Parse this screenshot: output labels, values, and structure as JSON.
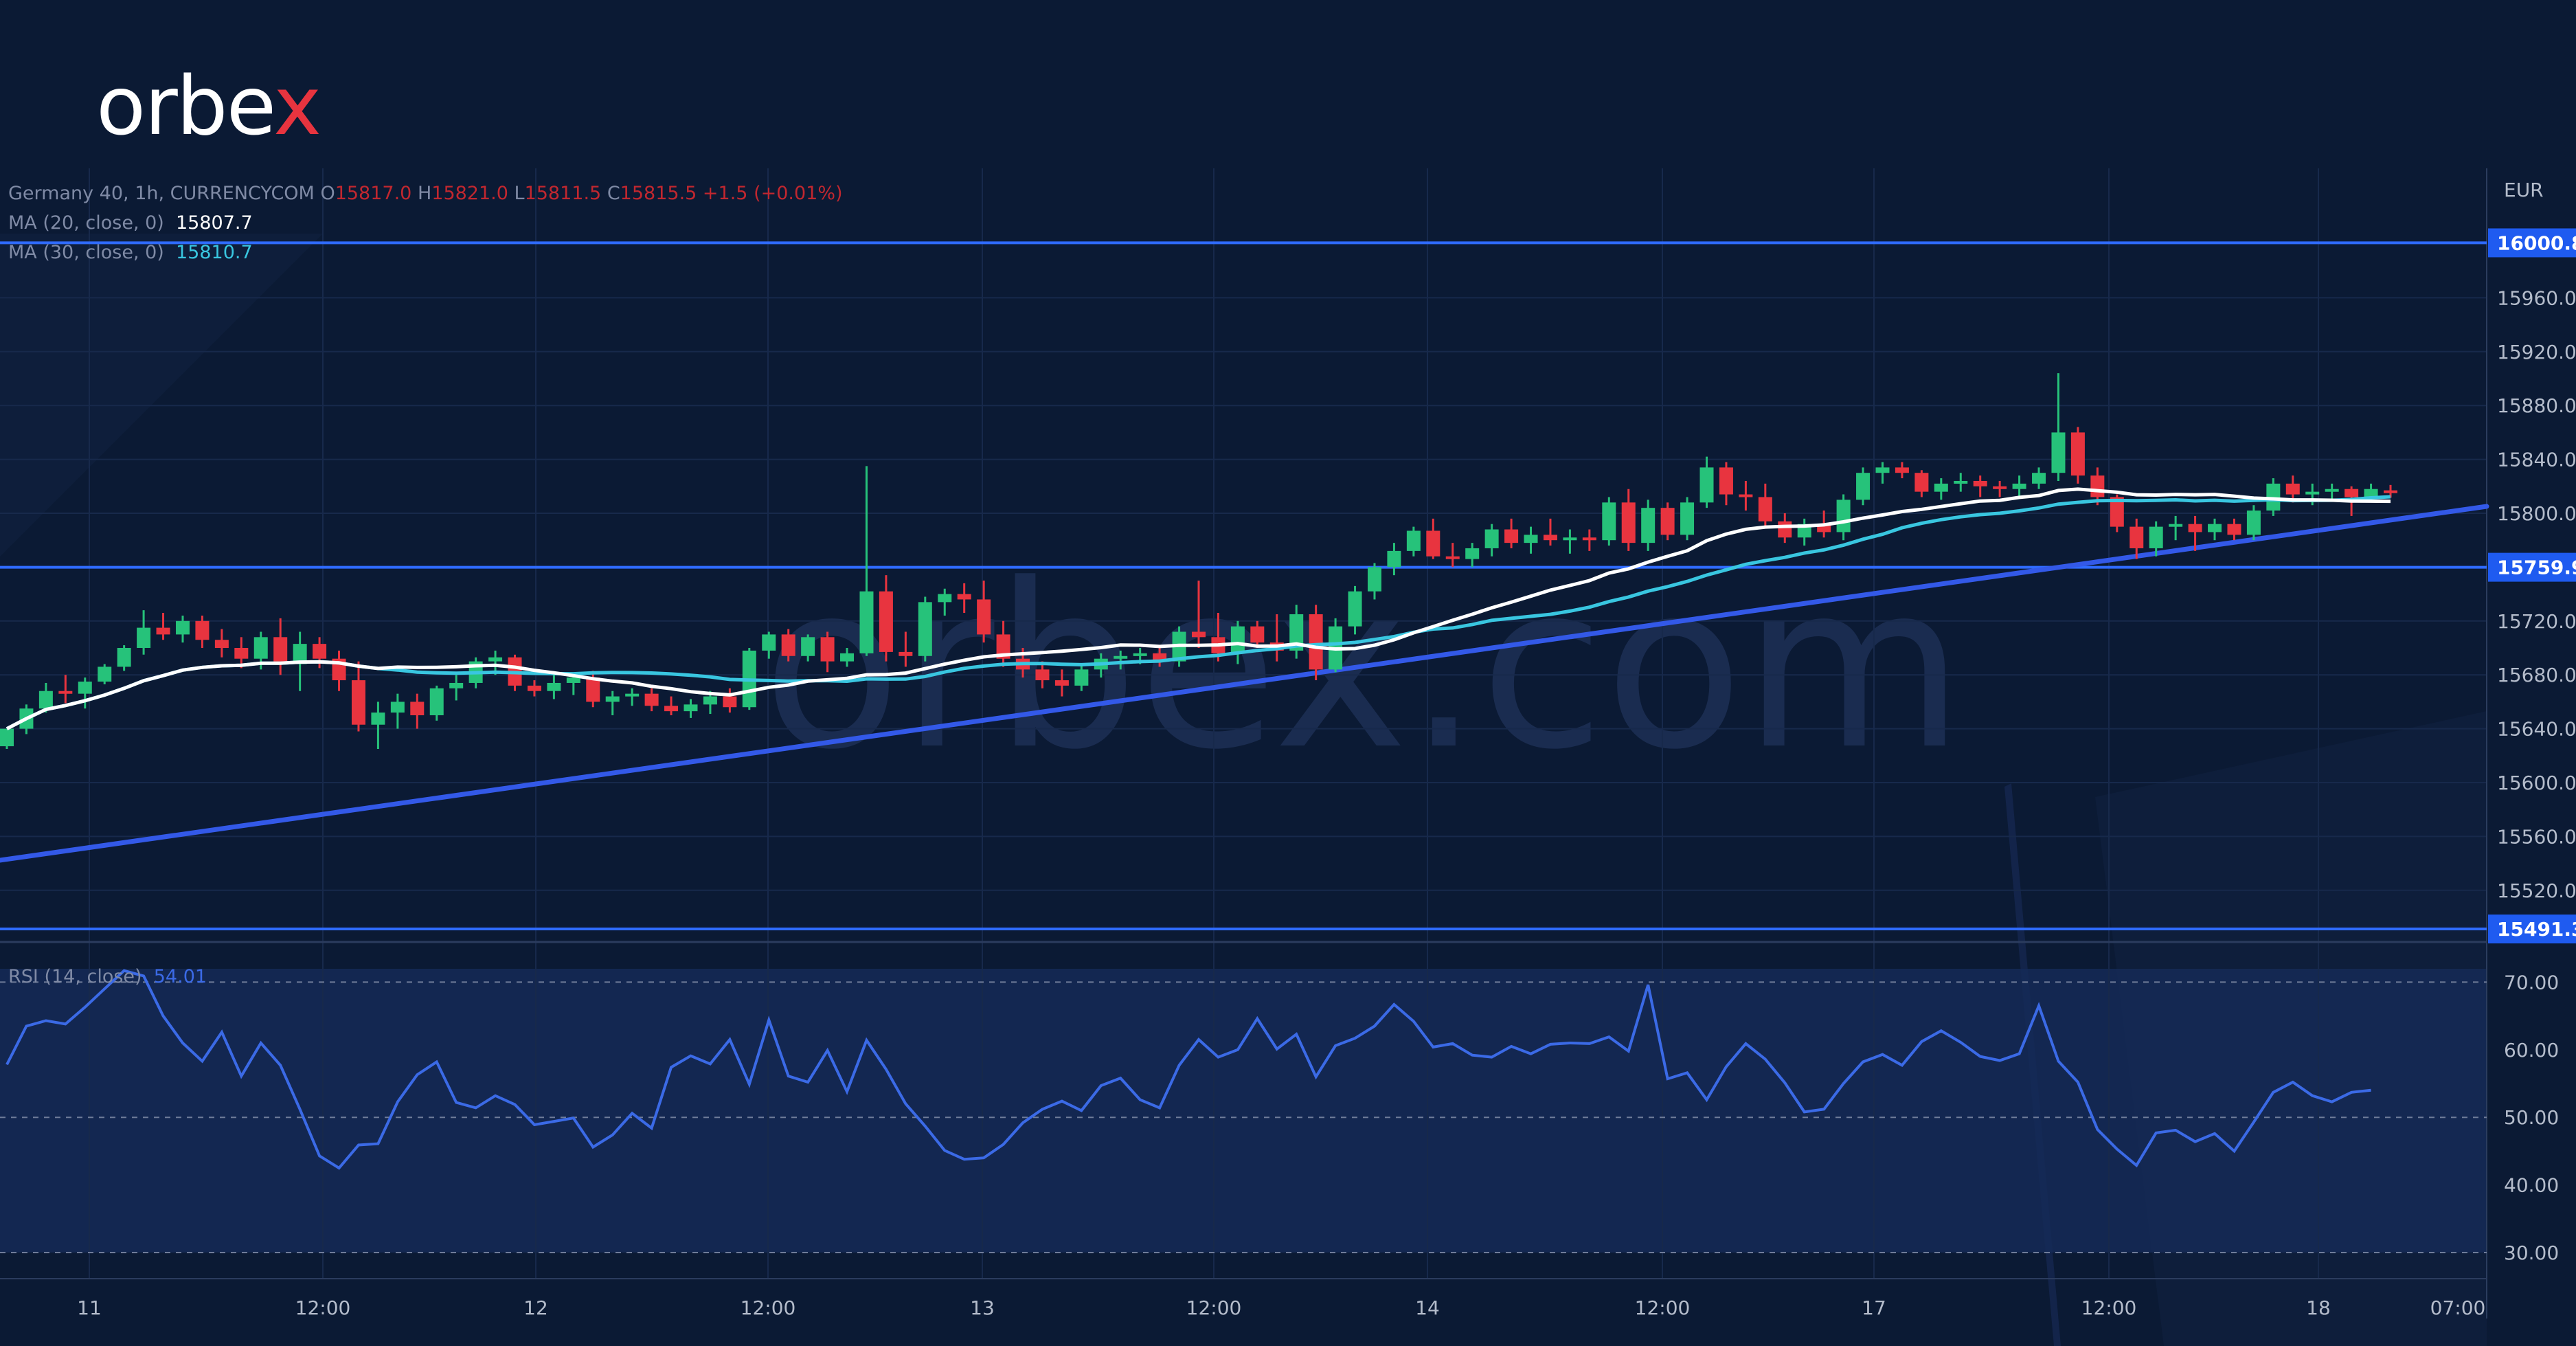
{
  "brand": {
    "logo_main": "orbe",
    "logo_x": "x",
    "watermark": "orbex.com"
  },
  "header": {
    "symbol": "Germany 40, 1h, CURRENCYCOM",
    "ohlc": {
      "o_label": "O",
      "o": "15817.0",
      "h_label": "H",
      "h": "15821.0",
      "l_label": "L",
      "l": "15811.5",
      "c_label": "C",
      "c": "15815.5",
      "change": "+1.5 (+0.01%)"
    },
    "ma20": {
      "label": "MA (20, close, 0)",
      "value": "15807.7"
    },
    "ma30": {
      "label": "MA (30, close, 0)",
      "value": "15810.7"
    },
    "rsi": {
      "label": "RSI (14, close)",
      "value": "54.01"
    }
  },
  "colors": {
    "background": "#0b1a34",
    "grid": "#17294b",
    "bull": "#26c27a",
    "bear": "#e8343f",
    "ma20": "#ffffff",
    "ma30": "#39c6e0",
    "level": "#2f6bff",
    "trend": "#3359e8",
    "rsi_line": "#3b6ae6",
    "rsi_band": "#152a57",
    "axis_text": "#b4bccb",
    "label_bg": "#1f5bf0"
  },
  "chart_data": [
    {
      "type": "candlestick",
      "symbol": "Germany 40",
      "interval": "1h",
      "currency": "EUR",
      "x_tick_labels": [
        "11",
        "12:00",
        "12",
        "12:00",
        "13",
        "12:00",
        "14",
        "12:00",
        "17",
        "12:00",
        "18",
        "07:00"
      ],
      "y_tick_labels": [
        "15960.0",
        "15920.0",
        "15880.0",
        "15840.0",
        "15800.0",
        "15720.0",
        "15680.0",
        "15640.0",
        "15600.0",
        "15560.0",
        "15520.0"
      ],
      "ylim": [
        15480,
        16040
      ],
      "grid": true,
      "horizontal_levels": [
        16000.8,
        15759.9,
        15491.3
      ],
      "trendline": {
        "from": [
          0,
          15546
        ],
        "to": [
          114,
          15800
        ]
      },
      "candles_ohlc": [
        [
          15627,
          15640,
          15625,
          15640
        ],
        [
          15640,
          15658,
          15636,
          15655
        ],
        [
          15655,
          15674,
          15652,
          15668
        ],
        [
          15668,
          15680,
          15659,
          15666
        ],
        [
          15666,
          15678,
          15655,
          15675
        ],
        [
          15675,
          15688,
          15673,
          15686
        ],
        [
          15686,
          15702,
          15683,
          15700
        ],
        [
          15700,
          15728,
          15695,
          15715
        ],
        [
          15715,
          15726,
          15706,
          15710
        ],
        [
          15710,
          15724,
          15704,
          15720
        ],
        [
          15720,
          15724,
          15700,
          15706
        ],
        [
          15706,
          15714,
          15693,
          15700
        ],
        [
          15700,
          15708,
          15685,
          15692
        ],
        [
          15692,
          15712,
          15684,
          15708
        ],
        [
          15708,
          15722,
          15680,
          15688
        ],
        [
          15688,
          15712,
          15668,
          15703
        ],
        [
          15703,
          15708,
          15685,
          15692
        ],
        [
          15692,
          15698,
          15668,
          15676
        ],
        [
          15676,
          15690,
          15638,
          15643
        ],
        [
          15643,
          15660,
          15625,
          15652
        ],
        [
          15652,
          15666,
          15640,
          15660
        ],
        [
          15660,
          15666,
          15640,
          15650
        ],
        [
          15650,
          15672,
          15646,
          15670
        ],
        [
          15670,
          15680,
          15661,
          15674
        ],
        [
          15674,
          15693,
          15670,
          15690
        ],
        [
          15690,
          15698,
          15680,
          15693
        ],
        [
          15693,
          15695,
          15668,
          15672
        ],
        [
          15672,
          15676,
          15664,
          15668
        ],
        [
          15668,
          15680,
          15662,
          15674
        ],
        [
          15674,
          15680,
          15665,
          15678
        ],
        [
          15678,
          15683,
          15656,
          15660
        ],
        [
          15660,
          15668,
          15650,
          15664
        ],
        [
          15664,
          15670,
          15657,
          15666
        ],
        [
          15666,
          15670,
          15653,
          15657
        ],
        [
          15657,
          15664,
          15650,
          15653
        ],
        [
          15653,
          15662,
          15648,
          15658
        ],
        [
          15658,
          15668,
          15651,
          15664
        ],
        [
          15664,
          15670,
          15652,
          15656
        ],
        [
          15656,
          15700,
          15654,
          15698
        ],
        [
          15698,
          15712,
          15692,
          15710
        ],
        [
          15710,
          15714,
          15690,
          15694
        ],
        [
          15694,
          15710,
          15690,
          15708
        ],
        [
          15708,
          15712,
          15682,
          15690
        ],
        [
          15690,
          15700,
          15686,
          15696
        ],
        [
          15696,
          15835,
          15694,
          15742
        ],
        [
          15742,
          15754,
          15690,
          15697
        ],
        [
          15697,
          15712,
          15686,
          15694
        ],
        [
          15694,
          15738,
          15690,
          15734
        ],
        [
          15734,
          15744,
          15724,
          15740
        ],
        [
          15740,
          15748,
          15726,
          15736
        ],
        [
          15736,
          15750,
          15704,
          15710
        ],
        [
          15710,
          15720,
          15686,
          15692
        ],
        [
          15692,
          15700,
          15678,
          15684
        ],
        [
          15684,
          15690,
          15670,
          15676
        ],
        [
          15676,
          15684,
          15664,
          15672
        ],
        [
          15672,
          15688,
          15668,
          15684
        ],
        [
          15684,
          15696,
          15678,
          15692
        ],
        [
          15692,
          15698,
          15684,
          15694
        ],
        [
          15694,
          15700,
          15688,
          15696
        ],
        [
          15696,
          15700,
          15686,
          15690
        ],
        [
          15690,
          15716,
          15686,
          15712
        ],
        [
          15712,
          15750,
          15700,
          15708
        ],
        [
          15708,
          15726,
          15690,
          15696
        ],
        [
          15696,
          15720,
          15688,
          15716
        ],
        [
          15716,
          15720,
          15700,
          15704
        ],
        [
          15704,
          15725,
          15690,
          15698
        ],
        [
          15698,
          15732,
          15692,
          15725
        ],
        [
          15725,
          15732,
          15676,
          15684
        ],
        [
          15684,
          15722,
          15682,
          15716
        ],
        [
          15716,
          15746,
          15710,
          15742
        ],
        [
          15742,
          15763,
          15736,
          15760
        ],
        [
          15760,
          15778,
          15754,
          15772
        ],
        [
          15772,
          15790,
          15768,
          15787
        ],
        [
          15787,
          15796,
          15766,
          15768
        ],
        [
          15768,
          15778,
          15760,
          15766
        ],
        [
          15766,
          15778,
          15760,
          15774
        ],
        [
          15774,
          15792,
          15768,
          15788
        ],
        [
          15788,
          15796,
          15774,
          15778
        ],
        [
          15778,
          15790,
          15770,
          15784
        ],
        [
          15784,
          15796,
          15776,
          15780
        ],
        [
          15780,
          15788,
          15770,
          15782
        ],
        [
          15782,
          15788,
          15772,
          15780
        ],
        [
          15780,
          15812,
          15776,
          15808
        ],
        [
          15808,
          15818,
          15772,
          15778
        ],
        [
          15778,
          15810,
          15772,
          15804
        ],
        [
          15804,
          15808,
          15780,
          15784
        ],
        [
          15784,
          15812,
          15780,
          15808
        ],
        [
          15808,
          15842,
          15804,
          15834
        ],
        [
          15834,
          15838,
          15806,
          15814
        ],
        [
          15814,
          15824,
          15802,
          15812
        ],
        [
          15812,
          15822,
          15790,
          15794
        ],
        [
          15794,
          15800,
          15778,
          15782
        ],
        [
          15782,
          15796,
          15776,
          15792
        ],
        [
          15792,
          15802,
          15782,
          15786
        ],
        [
          15786,
          15814,
          15780,
          15810
        ],
        [
          15810,
          15834,
          15806,
          15830
        ],
        [
          15830,
          15838,
          15822,
          15834
        ],
        [
          15834,
          15838,
          15826,
          15830
        ],
        [
          15830,
          15832,
          15812,
          15816
        ],
        [
          15816,
          15826,
          15810,
          15822
        ],
        [
          15822,
          15830,
          15816,
          15824
        ],
        [
          15824,
          15828,
          15812,
          15820
        ],
        [
          15820,
          15824,
          15812,
          15818
        ],
        [
          15818,
          15828,
          15812,
          15822
        ],
        [
          15822,
          15834,
          15818,
          15830
        ],
        [
          15830,
          15904,
          15824,
          15860
        ],
        [
          15860,
          15864,
          15822,
          15828
        ],
        [
          15828,
          15834,
          15806,
          15812
        ],
        [
          15812,
          15814,
          15786,
          15790
        ],
        [
          15790,
          15796,
          15766,
          15774
        ],
        [
          15774,
          15794,
          15768,
          15790
        ],
        [
          15790,
          15798,
          15780,
          15792
        ],
        [
          15792,
          15798,
          15772,
          15786
        ],
        [
          15786,
          15796,
          15780,
          15792
        ],
        [
          15792,
          15796,
          15780,
          15784
        ],
        [
          15784,
          15806,
          15780,
          15802
        ],
        [
          15802,
          15826,
          15798,
          15822
        ],
        [
          15822,
          15828,
          15808,
          15814
        ],
        [
          15814,
          15822,
          15806,
          15816
        ],
        [
          15816,
          15822,
          15810,
          15818
        ],
        [
          15818,
          15820,
          15798,
          15812
        ],
        [
          15812,
          15822,
          15808,
          15818
        ],
        [
          15817,
          15821,
          15811.5,
          15815.5
        ]
      ]
    },
    {
      "type": "line",
      "title": "RSI (14, close)",
      "series": [
        {
          "name": "RSI (14, close)",
          "values": [
            57.8,
            63.5,
            64.3,
            63.8,
            66.3,
            69.0,
            71.7,
            70.9,
            65.0,
            61.0,
            58.3,
            62.6,
            56.1,
            61.0,
            57.7,
            51.2,
            44.3,
            42.5,
            45.9,
            46.1,
            52.3,
            56.3,
            58.2,
            52.2,
            51.4,
            53.2,
            51.9,
            48.9,
            49.4,
            49.9,
            45.6,
            47.4,
            50.6,
            48.4,
            57.4,
            59.1,
            57.9,
            61.5,
            54.9,
            64.4,
            56.1,
            55.2,
            59.9,
            53.8,
            61.4,
            57.1,
            52.0,
            48.7,
            45.1,
            43.8,
            44.0,
            46.0,
            49.2,
            51.2,
            52.4,
            51.0,
            54.7,
            55.8,
            52.6,
            51.4,
            57.7,
            61.5,
            58.9,
            60.0,
            64.6,
            60.1,
            62.3,
            56.0,
            60.6,
            61.7,
            63.5,
            66.7,
            64.2,
            60.4,
            60.9,
            59.2,
            58.9,
            60.5,
            59.4,
            60.8,
            61.0,
            60.9,
            61.9,
            59.8,
            69.6,
            55.7,
            56.6,
            52.6,
            57.5,
            60.9,
            58.6,
            55.1,
            50.8,
            51.2,
            55.0,
            58.2,
            59.3,
            57.7,
            61.2,
            62.8,
            61.1,
            59.0,
            58.4,
            59.4,
            66.5,
            58.3,
            55.2,
            48.2,
            45.3,
            42.9,
            47.7,
            48.1,
            46.4,
            47.6,
            45.0,
            49.3,
            53.7,
            55.2,
            53.2,
            52.3,
            53.7,
            54.01
          ]
        }
      ],
      "levels": [
        70.0,
        50.0,
        30.0
      ],
      "y_tick_labels": [
        "70.00",
        "60.00",
        "50.00",
        "40.00",
        "30.00"
      ],
      "ylim": [
        24.5,
        73.7
      ]
    }
  ]
}
